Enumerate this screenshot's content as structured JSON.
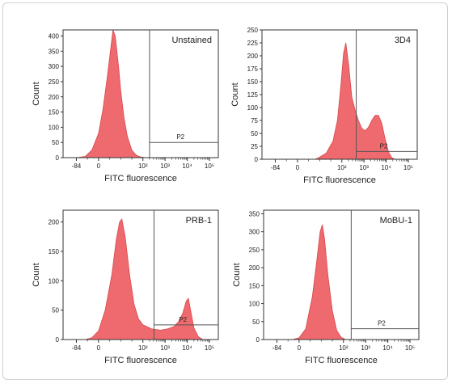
{
  "chart_data": [
    {
      "type": "area",
      "title": "Unstained",
      "xlabel": "FITC fluorescence",
      "ylabel": "Count",
      "ylim": [
        0,
        420
      ],
      "yticks": [
        "0",
        "50",
        "100",
        "150",
        "200",
        "250",
        "300",
        "350",
        "400"
      ],
      "xticks": [
        "-84",
        "0",
        "10²",
        "10³",
        "10⁴",
        "10⁵"
      ],
      "gate": {
        "label": "P2",
        "start_decade": 2.3,
        "end_decade": 5.4,
        "count": 50
      },
      "series": [
        {
          "values": [
            [
              -1.0,
              0
            ],
            [
              -0.6,
              4
            ],
            [
              -0.3,
              25
            ],
            [
              0.0,
              80
            ],
            [
              0.2,
              160
            ],
            [
              0.4,
              270
            ],
            [
              0.55,
              360
            ],
            [
              0.65,
              420
            ],
            [
              0.75,
              400
            ],
            [
              0.9,
              300
            ],
            [
              1.0,
              220
            ],
            [
              1.15,
              130
            ],
            [
              1.3,
              70
            ],
            [
              1.5,
              25
            ],
            [
              1.7,
              8
            ],
            [
              1.9,
              2
            ],
            [
              2.1,
              0
            ]
          ]
        }
      ]
    },
    {
      "type": "area",
      "title": "3D4",
      "xlabel": "FITC fluorescence",
      "ylabel": "Count",
      "ylim": [
        0,
        250
      ],
      "yticks": [
        "0",
        "25",
        "50",
        "75",
        "100",
        "125",
        "150",
        "175",
        "200",
        "225",
        "250"
      ],
      "xticks": [
        "-84",
        "0",
        "10²",
        "10³",
        "10⁴",
        "10⁵"
      ],
      "gate": {
        "label": "P2",
        "start_decade": 2.65,
        "end_decade": 5.6,
        "count": 15
      },
      "series": [
        {
          "values": [
            [
              0.8,
              0
            ],
            [
              1.0,
              4
            ],
            [
              1.3,
              12
            ],
            [
              1.6,
              35
            ],
            [
              1.8,
              75
            ],
            [
              1.95,
              140
            ],
            [
              2.08,
              205
            ],
            [
              2.18,
              225
            ],
            [
              2.3,
              185
            ],
            [
              2.45,
              120
            ],
            [
              2.6,
              95
            ],
            [
              2.75,
              75
            ],
            [
              2.9,
              60
            ],
            [
              3.05,
              55
            ],
            [
              3.2,
              62
            ],
            [
              3.35,
              75
            ],
            [
              3.5,
              85
            ],
            [
              3.65,
              85
            ],
            [
              3.8,
              70
            ],
            [
              3.95,
              40
            ],
            [
              4.1,
              15
            ],
            [
              4.25,
              3
            ],
            [
              4.4,
              0
            ]
          ]
        }
      ]
    },
    {
      "type": "area",
      "title": "PRB-1",
      "xlabel": "FITC fluorescence",
      "ylabel": "Count",
      "ylim": [
        0,
        220
      ],
      "yticks": [
        "0",
        "50",
        "100",
        "150",
        "200"
      ],
      "xticks": [
        "-84",
        "0",
        "10²",
        "10³",
        "10⁴",
        "10⁵"
      ],
      "gate": {
        "label": "P2",
        "start_decade": 2.5,
        "end_decade": 5.6,
        "count": 25
      },
      "series": [
        {
          "values": [
            [
              -0.6,
              0
            ],
            [
              -0.3,
              3
            ],
            [
              0.0,
              15
            ],
            [
              0.3,
              50
            ],
            [
              0.6,
              110
            ],
            [
              0.8,
              170
            ],
            [
              0.95,
              200
            ],
            [
              1.05,
              205
            ],
            [
              1.2,
              175
            ],
            [
              1.4,
              110
            ],
            [
              1.6,
              60
            ],
            [
              1.8,
              35
            ],
            [
              2.0,
              25
            ],
            [
              2.4,
              18
            ],
            [
              2.8,
              16
            ],
            [
              3.1,
              18
            ],
            [
              3.4,
              22
            ],
            [
              3.6,
              30
            ],
            [
              3.8,
              45
            ],
            [
              3.95,
              65
            ],
            [
              4.05,
              70
            ],
            [
              4.15,
              50
            ],
            [
              4.3,
              20
            ],
            [
              4.5,
              5
            ],
            [
              4.7,
              0
            ]
          ]
        }
      ]
    },
    {
      "type": "area",
      "title": "MoBU-1",
      "xlabel": "FITC fluorescence",
      "ylabel": "Count",
      "ylim": [
        0,
        360
      ],
      "yticks": [
        "0",
        "50",
        "100",
        "150",
        "200",
        "250",
        "300",
        "350"
      ],
      "xticks": [
        "-84",
        "0",
        "10²",
        "10³",
        "10⁴",
        "10⁵"
      ],
      "gate": {
        "label": "P2",
        "start_decade": 2.35,
        "end_decade": 5.6,
        "count": 30
      },
      "series": [
        {
          "values": [
            [
              -0.3,
              0
            ],
            [
              0.0,
              5
            ],
            [
              0.3,
              30
            ],
            [
              0.6,
              120
            ],
            [
              0.8,
              220
            ],
            [
              0.95,
              300
            ],
            [
              1.05,
              320
            ],
            [
              1.15,
              280
            ],
            [
              1.3,
              180
            ],
            [
              1.5,
              80
            ],
            [
              1.7,
              25
            ],
            [
              1.9,
              6
            ],
            [
              2.1,
              0
            ]
          ]
        }
      ]
    }
  ],
  "style": {
    "fill": "#ee6a6e",
    "stroke": "#d8474c",
    "axis": "#333333",
    "gate": "#555555"
  }
}
